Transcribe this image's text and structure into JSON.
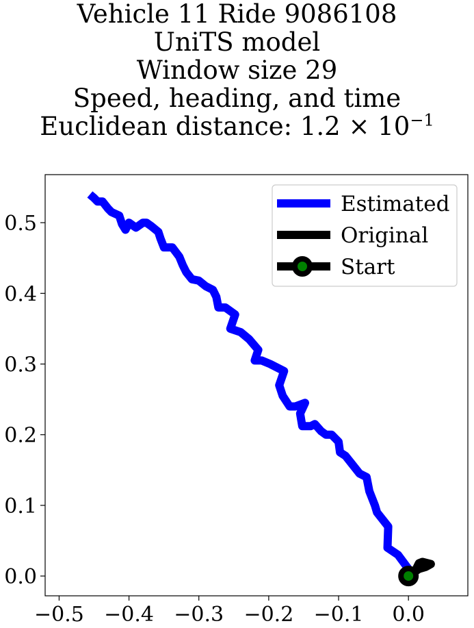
{
  "chart_data": {
    "type": "line",
    "title_lines": [
      "Vehicle 11 Ride 9086108",
      "UniTS model",
      "Window size 29",
      "Speed, heading, and time"
    ],
    "distance_prefix": "Euclidean distance: 1.2",
    "distance_times": "×",
    "distance_base": "10",
    "distance_exponent": "−1",
    "xlabel": "",
    "ylabel": "",
    "xlim": [
      -0.52,
      0.085
    ],
    "ylim": [
      -0.028,
      0.568
    ],
    "xticks": [
      -0.5,
      -0.4,
      -0.3,
      -0.2,
      -0.1,
      0.0
    ],
    "xtick_labels": [
      "−0.5",
      "−0.4",
      "−0.3",
      "−0.2",
      "−0.1",
      "0.0"
    ],
    "yticks": [
      0.0,
      0.1,
      0.2,
      0.3,
      0.4,
      0.5
    ],
    "ytick_labels": [
      "0.0",
      "0.1",
      "0.2",
      "0.3",
      "0.4",
      "0.5"
    ],
    "legend_position": "top-right",
    "series": [
      {
        "name": "Estimated",
        "color": "#0000ff",
        "x": [
          0.0,
          -0.015,
          -0.03,
          -0.029,
          -0.045,
          -0.048,
          -0.056,
          -0.06,
          -0.07,
          -0.082,
          -0.09,
          -0.098,
          -0.1,
          -0.11,
          -0.118,
          -0.125,
          -0.134,
          -0.14,
          -0.152,
          -0.155,
          -0.148,
          -0.162,
          -0.17,
          -0.18,
          -0.185,
          -0.178,
          -0.198,
          -0.21,
          -0.22,
          -0.215,
          -0.228,
          -0.24,
          -0.255,
          -0.248,
          -0.262,
          -0.272,
          -0.275,
          -0.28,
          -0.29,
          -0.3,
          -0.31,
          -0.318,
          -0.323,
          -0.328,
          -0.338,
          -0.35,
          -0.355,
          -0.358,
          -0.368,
          -0.375,
          -0.38,
          -0.39,
          -0.4,
          -0.405,
          -0.41,
          -0.414,
          -0.425,
          -0.43,
          -0.438,
          -0.445,
          -0.45,
          -0.456
        ],
        "y": [
          0.01,
          0.03,
          0.04,
          0.07,
          0.09,
          0.1,
          0.12,
          0.14,
          0.145,
          0.16,
          0.17,
          0.175,
          0.19,
          0.2,
          0.2,
          0.205,
          0.215,
          0.212,
          0.212,
          0.23,
          0.245,
          0.24,
          0.24,
          0.255,
          0.27,
          0.29,
          0.3,
          0.305,
          0.305,
          0.32,
          0.335,
          0.345,
          0.35,
          0.37,
          0.38,
          0.38,
          0.395,
          0.405,
          0.41,
          0.418,
          0.42,
          0.43,
          0.44,
          0.452,
          0.465,
          0.465,
          0.478,
          0.487,
          0.495,
          0.5,
          0.5,
          0.493,
          0.5,
          0.49,
          0.498,
          0.51,
          0.515,
          0.52,
          0.53,
          0.53,
          0.535,
          0.54
        ]
      },
      {
        "name": "Original",
        "color": "#000000",
        "x": [
          0.0,
          0.01,
          0.015,
          0.02,
          0.032,
          0.025,
          0.015,
          0.0
        ],
        "y": [
          0.0,
          0.008,
          0.018,
          0.02,
          0.017,
          0.013,
          0.01,
          0.0
        ]
      },
      {
        "name": "Start",
        "color": "#000000",
        "marker_face": "#008000",
        "x": [
          0.0
        ],
        "y": [
          0.0
        ]
      }
    ]
  }
}
